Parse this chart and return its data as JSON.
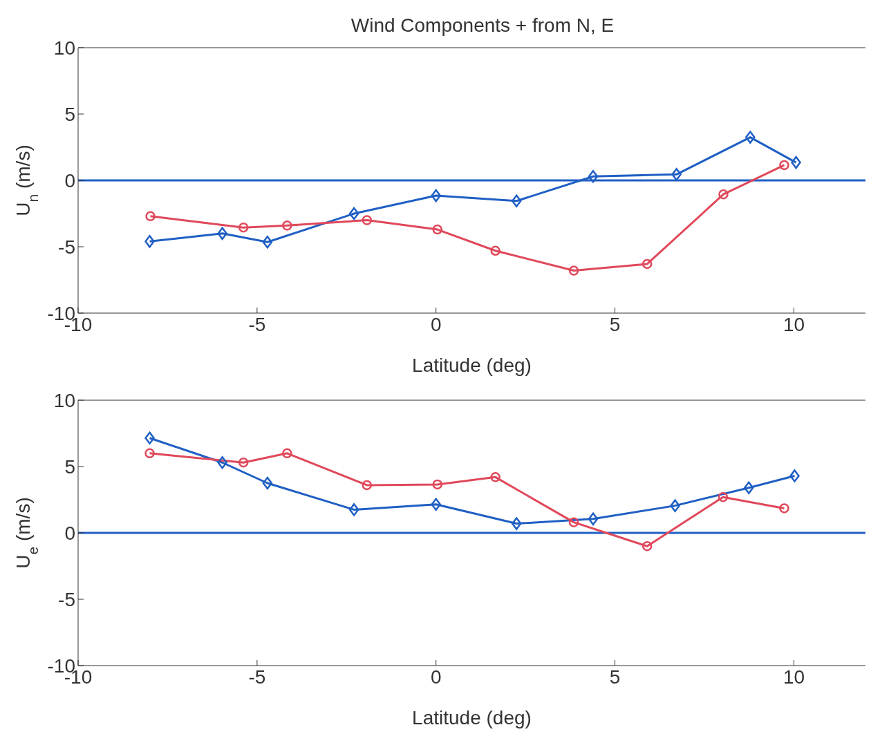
{
  "chart_data": [
    {
      "type": "line",
      "title": "Wind Components + from N, E",
      "xlabel": "Latitude (deg)",
      "ylabel": "U$_{n}$ (m/s)",
      "xlim": [
        -10,
        12
      ],
      "xticks": [
        -10,
        -5,
        0,
        5,
        10
      ],
      "ylim": [
        -10,
        10
      ],
      "yticks": [
        -10,
        -5,
        0,
        5,
        10
      ],
      "series": [
        {
          "color": "#1f5fc4",
          "marker": "diamond",
          "x": [
            -8.0,
            -5.97,
            -4.71,
            -2.29,
            0,
            2.25,
            4.39,
            6.72,
            8.78,
            10.06
          ],
          "values": [
            -4.6,
            -4.0,
            -4.65,
            -2.5,
            -1.15,
            -1.55,
            0.3,
            0.45,
            3.25,
            1.35
          ]
        },
        {
          "color": "#e0485a",
          "marker": "circle",
          "x": [
            -7.98,
            -5.38,
            -4.16,
            -1.93,
            0.04,
            1.66,
            3.85,
            5.9,
            8.03,
            9.73
          ],
          "values": [
            -2.7,
            -3.55,
            -3.4,
            -3.0,
            -3.7,
            -5.3,
            -6.8,
            -6.3,
            -1.05,
            1.15
          ]
        }
      ],
      "ref_lines": [
        {
          "axis": "y",
          "value": 0,
          "color": "#1f5fc4"
        }
      ]
    },
    {
      "type": "line",
      "xlabel": "Latitude (deg)",
      "ylabel": "U$_{e}$ (m/s)",
      "xlim": [
        -10,
        12
      ],
      "xticks": [
        -10,
        -5,
        0,
        5,
        10
      ],
      "ylim": [
        -10,
        10
      ],
      "yticks": [
        -10,
        -5,
        0,
        5,
        10
      ],
      "series": [
        {
          "color": "#1f5fc4",
          "marker": "diamond",
          "x": [
            -8.0,
            -5.97,
            -4.71,
            -2.29,
            0,
            2.25,
            4.39,
            6.68,
            8.74,
            10.02
          ],
          "values": [
            7.15,
            5.3,
            3.75,
            1.75,
            2.15,
            0.7,
            1.05,
            2.05,
            3.4,
            4.3
          ]
        },
        {
          "color": "#e0485a",
          "marker": "circle",
          "x": [
            -8.0,
            -5.38,
            -4.16,
            -1.93,
            0.04,
            1.66,
            3.85,
            5.9,
            8.02,
            9.73
          ],
          "values": [
            6.0,
            5.3,
            6.0,
            3.6,
            3.65,
            4.2,
            0.8,
            -1.0,
            2.7,
            1.85
          ]
        }
      ],
      "ref_lines": [
        {
          "axis": "y",
          "value": 0,
          "color": "#1f5fc4"
        }
      ]
    }
  ]
}
